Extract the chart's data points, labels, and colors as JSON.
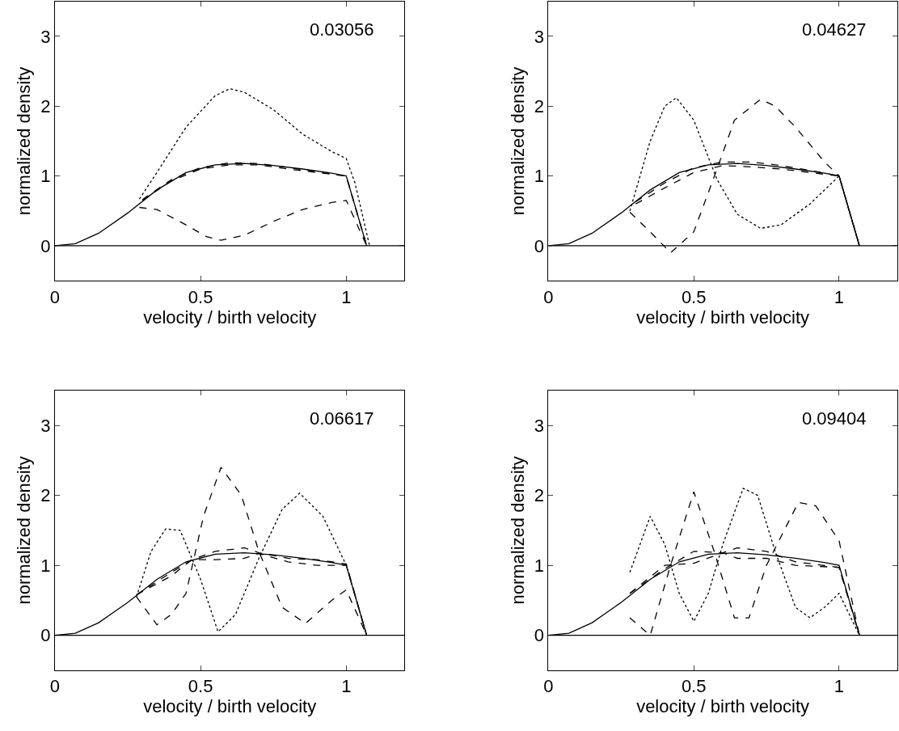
{
  "chart_data": [
    {
      "type": "line",
      "xlabel": "velocity / birth velocity",
      "ylabel": "normalized density",
      "annotations": [
        "0.03056"
      ],
      "xlim": [
        0,
        1.2
      ],
      "ylim": [
        -0.5,
        3.5
      ],
      "xticks": [
        0,
        0.5,
        1
      ],
      "yticks": [
        0,
        1,
        2,
        3
      ],
      "ref_lines": [
        {
          "axis": "y",
          "value": 0,
          "color": "#000000",
          "line_style": "solid"
        }
      ],
      "series": [
        {
          "color": "#000000",
          "line_style": "solid",
          "x": [
            0,
            0.07,
            0.15,
            0.25,
            0.35,
            0.45,
            0.55,
            0.65,
            0.75,
            0.85,
            0.95,
            1.0,
            1.07
          ],
          "values": [
            0,
            0.03,
            0.18,
            0.47,
            0.8,
            1.05,
            1.16,
            1.18,
            1.15,
            1.1,
            1.04,
            1.0,
            0
          ]
        },
        {
          "color": "#000000",
          "line_style": "dotted",
          "x": [
            0.29,
            0.35,
            0.45,
            0.55,
            0.6,
            0.65,
            0.75,
            0.85,
            0.95,
            1.0,
            1.03,
            1.08
          ],
          "values": [
            0.67,
            1.05,
            1.7,
            2.15,
            2.25,
            2.2,
            1.95,
            1.6,
            1.35,
            1.25,
            0.9,
            0
          ]
        },
        {
          "color": "#000000",
          "line_style": "dashed",
          "x": [
            0.29,
            0.35,
            0.45,
            0.52,
            0.57,
            0.65,
            0.75,
            0.85,
            0.95,
            1.0,
            1.07
          ],
          "values": [
            0.55,
            0.52,
            0.3,
            0.13,
            0.08,
            0.15,
            0.35,
            0.52,
            0.62,
            0.65,
            0
          ]
        },
        {
          "color": "#000000",
          "line_style": "dashed",
          "x": [
            0.3,
            0.4,
            0.5,
            0.6,
            0.7,
            0.8,
            0.9,
            1.0,
            1.07
          ],
          "values": [
            0.66,
            0.95,
            1.12,
            1.19,
            1.18,
            1.12,
            1.06,
            1.0,
            0
          ]
        },
        {
          "color": "#000000",
          "line_style": "dashed",
          "x": [
            0.3,
            0.4,
            0.5,
            0.6,
            0.7,
            0.8,
            0.9,
            1.0,
            1.07
          ],
          "values": [
            0.65,
            0.93,
            1.1,
            1.16,
            1.16,
            1.1,
            1.05,
            1.0,
            0
          ]
        }
      ]
    },
    {
      "type": "line",
      "xlabel": "velocity / birth velocity",
      "ylabel": "normalized density",
      "annotations": [
        "0.04627"
      ],
      "xlim": [
        0,
        1.2
      ],
      "ylim": [
        -0.5,
        3.5
      ],
      "xticks": [
        0,
        0.5,
        1
      ],
      "yticks": [
        0,
        1,
        2,
        3
      ],
      "ref_lines": [
        {
          "axis": "y",
          "value": 0,
          "color": "#000000",
          "line_style": "solid"
        }
      ],
      "series": [
        {
          "color": "#000000",
          "line_style": "solid",
          "x": [
            0,
            0.07,
            0.15,
            0.25,
            0.35,
            0.45,
            0.55,
            0.65,
            0.75,
            0.85,
            0.95,
            1.0,
            1.07
          ],
          "values": [
            0,
            0.03,
            0.18,
            0.47,
            0.8,
            1.05,
            1.16,
            1.18,
            1.15,
            1.1,
            1.04,
            1.0,
            0
          ]
        },
        {
          "color": "#000000",
          "line_style": "dotted",
          "x": [
            0.28,
            0.35,
            0.4,
            0.44,
            0.5,
            0.58,
            0.65,
            0.73,
            0.8,
            0.9,
            1.0,
            1.07
          ],
          "values": [
            0.5,
            1.5,
            2.0,
            2.12,
            1.8,
            0.95,
            0.45,
            0.25,
            0.3,
            0.6,
            1.0,
            0
          ]
        },
        {
          "color": "#000000",
          "line_style": "dashed",
          "x": [
            0.28,
            0.35,
            0.42,
            0.5,
            0.58,
            0.64,
            0.73,
            0.78,
            0.85,
            0.95,
            1.0,
            1.07
          ],
          "values": [
            0.48,
            0.2,
            -0.1,
            0.2,
            1.1,
            1.8,
            2.1,
            2.0,
            1.7,
            1.2,
            1.0,
            0
          ]
        },
        {
          "color": "#000000",
          "line_style": "dashed",
          "x": [
            0.3,
            0.4,
            0.5,
            0.6,
            0.7,
            0.8,
            0.9,
            1.0,
            1.07
          ],
          "values": [
            0.63,
            0.9,
            1.12,
            1.2,
            1.2,
            1.15,
            1.08,
            1.0,
            0
          ]
        },
        {
          "color": "#000000",
          "line_style": "dashed",
          "x": [
            0.3,
            0.4,
            0.5,
            0.6,
            0.7,
            0.8,
            0.9,
            1.0,
            1.07
          ],
          "values": [
            0.6,
            0.83,
            1.05,
            1.15,
            1.13,
            1.1,
            1.05,
            1.0,
            0
          ]
        }
      ]
    },
    {
      "type": "line",
      "xlabel": "velocity / birth velocity",
      "ylabel": "normalized density",
      "annotations": [
        "0.06617"
      ],
      "xlim": [
        0,
        1.2
      ],
      "ylim": [
        -0.5,
        3.5
      ],
      "xticks": [
        0,
        0.5,
        1
      ],
      "yticks": [
        0,
        1,
        2,
        3
      ],
      "ref_lines": [
        {
          "axis": "y",
          "value": 0,
          "color": "#000000",
          "line_style": "solid"
        }
      ],
      "series": [
        {
          "color": "#000000",
          "line_style": "solid",
          "x": [
            0,
            0.07,
            0.15,
            0.25,
            0.35,
            0.45,
            0.55,
            0.65,
            0.75,
            0.85,
            0.95,
            1.0,
            1.07
          ],
          "values": [
            0,
            0.03,
            0.18,
            0.47,
            0.8,
            1.05,
            1.16,
            1.18,
            1.15,
            1.1,
            1.04,
            1.0,
            0
          ]
        },
        {
          "color": "#000000",
          "line_style": "dotted",
          "x": [
            0.28,
            0.33,
            0.38,
            0.43,
            0.5,
            0.56,
            0.62,
            0.7,
            0.78,
            0.84,
            0.92,
            1.0,
            1.07
          ],
          "values": [
            0.55,
            1.2,
            1.52,
            1.5,
            0.8,
            0.05,
            0.3,
            1.1,
            1.8,
            2.03,
            1.7,
            1.0,
            0
          ]
        },
        {
          "color": "#000000",
          "line_style": "dashed",
          "x": [
            0.28,
            0.35,
            0.4,
            0.45,
            0.51,
            0.57,
            0.64,
            0.7,
            0.78,
            0.86,
            0.95,
            1.0,
            1.07
          ],
          "values": [
            0.55,
            0.15,
            0.3,
            0.6,
            1.7,
            2.4,
            2.0,
            1.2,
            0.4,
            0.17,
            0.5,
            0.65,
            0
          ]
        },
        {
          "color": "#000000",
          "line_style": "dashed",
          "x": [
            0.28,
            0.4,
            0.47,
            0.55,
            0.65,
            0.7,
            0.8,
            0.9,
            1.0,
            1.07
          ],
          "values": [
            0.58,
            0.9,
            1.08,
            1.2,
            1.25,
            1.18,
            1.1,
            1.08,
            1.02,
            0
          ]
        },
        {
          "color": "#000000",
          "line_style": "dashed",
          "x": [
            0.28,
            0.4,
            0.47,
            0.55,
            0.65,
            0.7,
            0.8,
            0.9,
            1.0,
            1.07
          ],
          "values": [
            0.58,
            0.85,
            1.08,
            1.08,
            1.1,
            1.17,
            1.05,
            1.0,
            1.0,
            0
          ]
        }
      ]
    },
    {
      "type": "line",
      "xlabel": "velocity / birth velocity",
      "ylabel": "normalized density",
      "annotations": [
        "0.09404"
      ],
      "xlim": [
        0,
        1.2
      ],
      "ylim": [
        -0.5,
        3.5
      ],
      "xticks": [
        0,
        0.5,
        1
      ],
      "yticks": [
        0,
        1,
        2,
        3
      ],
      "ref_lines": [
        {
          "axis": "y",
          "value": 0,
          "color": "#000000",
          "line_style": "solid"
        }
      ],
      "series": [
        {
          "color": "#000000",
          "line_style": "solid",
          "x": [
            0,
            0.07,
            0.15,
            0.25,
            0.35,
            0.45,
            0.55,
            0.65,
            0.75,
            0.85,
            0.95,
            1.0,
            1.07
          ],
          "values": [
            0,
            0.03,
            0.18,
            0.47,
            0.8,
            1.05,
            1.16,
            1.18,
            1.15,
            1.1,
            1.04,
            1.0,
            0
          ]
        },
        {
          "color": "#000000",
          "line_style": "dotted",
          "x": [
            0.28,
            0.35,
            0.4,
            0.45,
            0.5,
            0.55,
            0.6,
            0.67,
            0.72,
            0.78,
            0.85,
            0.9,
            0.95,
            1.0,
            1.07
          ],
          "values": [
            0.9,
            1.7,
            1.3,
            0.6,
            0.2,
            0.6,
            1.3,
            2.1,
            2.0,
            1.2,
            0.4,
            0.25,
            0.4,
            0.6,
            0
          ]
        },
        {
          "color": "#000000",
          "line_style": "dashed",
          "x": [
            0.28,
            0.35,
            0.42,
            0.5,
            0.57,
            0.64,
            0.69,
            0.75,
            0.86,
            0.92,
            1.0,
            1.07
          ],
          "values": [
            0.25,
            0.0,
            1.0,
            2.05,
            1.2,
            0.25,
            0.25,
            1.0,
            1.9,
            1.85,
            1.35,
            0
          ]
        },
        {
          "color": "#000000",
          "line_style": "dashed",
          "x": [
            0.28,
            0.4,
            0.5,
            0.6,
            0.65,
            0.75,
            0.85,
            1.0,
            1.07
          ],
          "values": [
            0.6,
            0.95,
            1.2,
            1.18,
            1.25,
            1.2,
            1.05,
            0.97,
            0
          ]
        },
        {
          "color": "#000000",
          "line_style": "dashed",
          "x": [
            0.28,
            0.4,
            0.5,
            0.6,
            0.65,
            0.75,
            0.85,
            1.0,
            1.07
          ],
          "values": [
            0.6,
            1.0,
            1.03,
            1.18,
            1.1,
            1.1,
            1.0,
            0.97,
            0
          ]
        }
      ]
    }
  ]
}
